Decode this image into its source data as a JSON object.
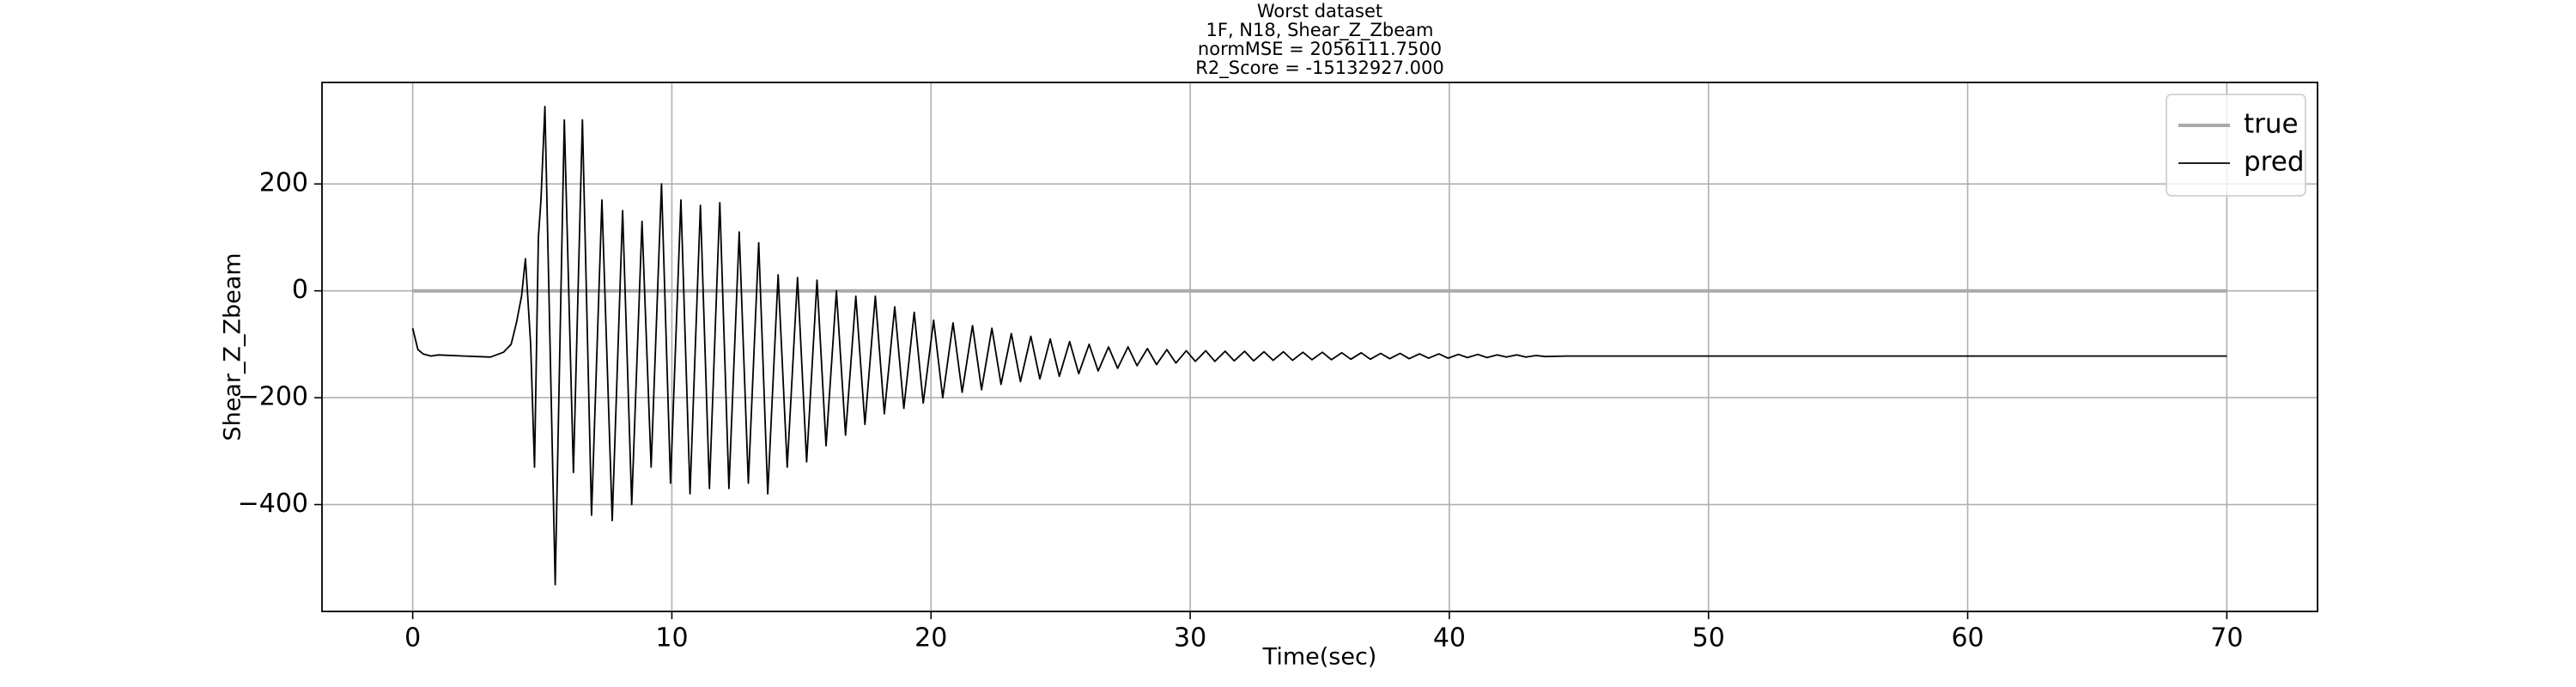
{
  "chart_data": {
    "type": "line",
    "title": [
      "Worst dataset",
      "1F, N18, Shear_Z_Zbeam",
      "normMSE = 2056111.7500",
      "R2_Score = -15132927.000"
    ],
    "xlabel": "Time(sec)",
    "ylabel": "Shear_Z_Zbeam",
    "xlim": [
      -3.5,
      73.5
    ],
    "ylim": [
      -600,
      390
    ],
    "xticks": [
      0,
      10,
      20,
      30,
      40,
      50,
      60,
      70
    ],
    "yticks": [
      {
        "value": -400,
        "label": "−400"
      },
      {
        "value": -200,
        "label": "−200"
      },
      0,
      200
    ],
    "grid": true,
    "legend": "upper right",
    "series": [
      {
        "name": "true",
        "color": "#aaaaaa",
        "x": [
          0,
          70
        ],
        "values": [
          0,
          0
        ]
      },
      {
        "name": "pred",
        "color": "#000000",
        "x": [
          0,
          0.2,
          0.4,
          0.7,
          1,
          2,
          3,
          3.5,
          3.8,
          4.0,
          4.2,
          4.35,
          4.55,
          4.7,
          4.85,
          4.95,
          5.1,
          5.5,
          5.85,
          6.2,
          6.55,
          6.9,
          7.3,
          7.7,
          8.1,
          8.45,
          8.85,
          9.2,
          9.6,
          9.95,
          10.35,
          10.7,
          11.1,
          11.45,
          11.85,
          12.2,
          12.6,
          12.95,
          13.35,
          13.7,
          14.1,
          14.45,
          14.85,
          15.2,
          15.6,
          15.95,
          16.35,
          16.7,
          17.1,
          17.45,
          17.85,
          18.2,
          18.6,
          18.95,
          19.35,
          19.7,
          20.1,
          20.45,
          20.85,
          21.2,
          21.6,
          21.95,
          22.35,
          22.7,
          23.1,
          23.45,
          23.85,
          24.2,
          24.6,
          24.95,
          25.35,
          25.7,
          26.1,
          26.45,
          26.85,
          27.2,
          27.6,
          27.95,
          28.35,
          28.7,
          29.1,
          29.45,
          29.85,
          30.2,
          30.6,
          30.95,
          31.35,
          31.7,
          32.1,
          32.45,
          32.85,
          33.2,
          33.6,
          33.95,
          34.35,
          34.7,
          35.1,
          35.45,
          35.85,
          36.2,
          36.6,
          36.95,
          37.35,
          37.7,
          38.1,
          38.45,
          38.85,
          39.2,
          39.6,
          39.95,
          40.35,
          40.7,
          41.1,
          41.45,
          41.85,
          42.2,
          42.6,
          42.95,
          43.35,
          43.7,
          44.5,
          50,
          70
        ],
        "values": [
          -70,
          -110,
          -118,
          -122,
          -120,
          -122,
          -124,
          -115,
          -100,
          -60,
          -10,
          60,
          -100,
          -330,
          100,
          170,
          345,
          -550,
          320,
          -340,
          320,
          -420,
          170,
          -430,
          150,
          -400,
          130,
          -330,
          200,
          -360,
          170,
          -380,
          160,
          -370,
          165,
          -370,
          110,
          -360,
          90,
          -380,
          30,
          -330,
          25,
          -320,
          20,
          -290,
          0,
          -270,
          -10,
          -250,
          -10,
          -230,
          -30,
          -220,
          -40,
          -210,
          -55,
          -200,
          -60,
          -190,
          -65,
          -185,
          -70,
          -175,
          -80,
          -170,
          -85,
          -165,
          -90,
          -160,
          -95,
          -155,
          -100,
          -150,
          -105,
          -145,
          -105,
          -140,
          -108,
          -138,
          -110,
          -135,
          -112,
          -132,
          -112,
          -132,
          -113,
          -131,
          -113,
          -131,
          -114,
          -130,
          -114,
          -130,
          -115,
          -129,
          -115,
          -129,
          -116,
          -128,
          -116,
          -128,
          -117,
          -127,
          -117,
          -127,
          -118,
          -126,
          -118,
          -126,
          -119,
          -125,
          -119,
          -125,
          -120,
          -124,
          -120,
          -124,
          -121,
          -123,
          -122,
          -122,
          -122
        ]
      }
    ]
  }
}
